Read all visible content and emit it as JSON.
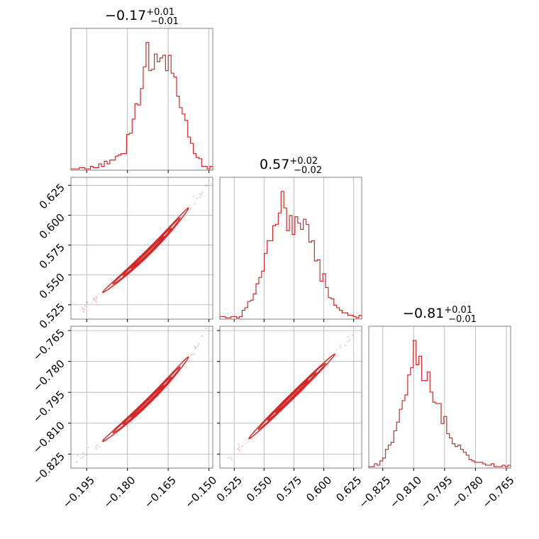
{
  "chart_data": {
    "type": "corner",
    "color": "#d62728",
    "grid": true,
    "titles": [
      {
        "value": "−0.17",
        "plus": "+0.01",
        "minus": "−0.01"
      },
      {
        "value": "0.57",
        "plus": "+0.02",
        "minus": "−0.02"
      },
      {
        "value": "−0.81",
        "plus": "+0.01",
        "minus": "−0.01"
      }
    ],
    "params": [
      {
        "range": [
          -0.2008,
          -0.1486
        ],
        "ticks": [
          -0.195,
          -0.18,
          -0.165,
          -0.15
        ],
        "tick_labels": [
          "−0.195",
          "−0.180",
          "−0.165",
          "−0.150"
        ]
      },
      {
        "range": [
          0.513,
          0.6317
        ],
        "ticks": [
          0.525,
          0.55,
          0.575,
          0.6,
          0.625
        ],
        "tick_labels": [
          "0.525",
          "0.550",
          "0.575",
          "0.600",
          "0.625"
        ]
      },
      {
        "range": [
          -0.8318,
          -0.7629
        ],
        "ticks": [
          -0.825,
          -0.81,
          -0.795,
          -0.78,
          -0.765
        ],
        "tick_labels": [
          "−0.825",
          "−0.810",
          "−0.795",
          "−0.780",
          "−0.765"
        ]
      }
    ],
    "histograms": [
      {
        "param": 0,
        "counts": [
          1,
          1,
          1,
          2,
          2,
          1,
          1,
          3,
          2,
          2,
          5,
          3,
          7,
          5,
          8,
          8,
          11,
          12,
          13,
          13,
          28,
          29,
          40,
          52,
          51,
          64,
          81,
          100,
          78,
          79,
          91,
          85,
          88,
          90,
          78,
          90,
          76,
          73,
          58,
          49,
          44,
          39,
          26,
          21,
          13,
          10,
          9,
          3,
          3,
          1,
          3
        ]
      },
      {
        "param": 1,
        "counts": [
          2,
          2,
          1,
          1,
          2,
          2,
          1,
          2,
          7,
          9,
          14,
          15,
          20,
          28,
          33,
          38,
          52,
          62,
          62,
          74,
          75,
          84,
          101,
          88,
          70,
          82,
          67,
          81,
          76,
          71,
          79,
          75,
          61,
          62,
          46,
          47,
          30,
          36,
          25,
          17,
          16,
          11,
          9,
          7,
          5,
          5,
          3,
          3,
          2,
          1,
          3
        ]
      },
      {
        "param": 2,
        "counts": [
          1,
          1,
          3,
          2,
          5,
          7,
          13,
          16,
          18,
          26,
          32,
          41,
          47,
          51,
          65,
          70,
          89,
          72,
          78,
          61,
          61,
          67,
          53,
          46,
          45,
          45,
          31,
          36,
          24,
          21,
          17,
          15,
          16,
          13,
          11,
          9,
          6,
          5,
          4,
          4,
          4,
          3,
          2,
          2,
          3,
          1,
          1,
          1,
          2,
          1,
          2
        ]
      }
    ],
    "scatter_panels": [
      {
        "x_param": 0,
        "y_param": 1
      },
      {
        "x_param": 0,
        "y_param": 2
      },
      {
        "x_param": 1,
        "y_param": 2
      }
    ]
  }
}
